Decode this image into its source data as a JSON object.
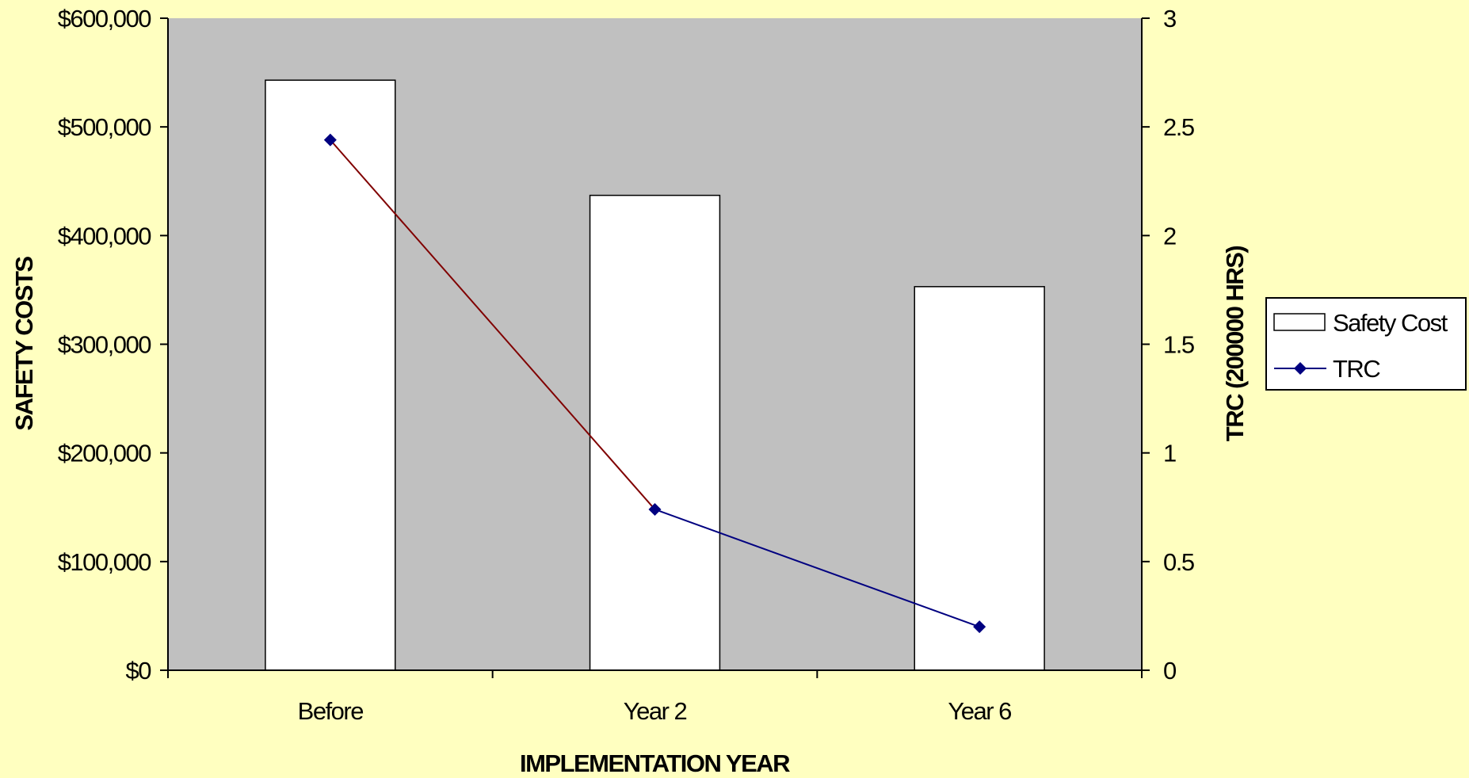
{
  "chart_data": {
    "type": "bar",
    "categories": [
      "Before",
      "Year 2",
      "Year 6"
    ],
    "series": [
      {
        "name": "Safety Cost",
        "type": "bar",
        "axis": "left",
        "values": [
          543000,
          437000,
          353000
        ],
        "color": "#FFFFFF"
      },
      {
        "name": "TRC",
        "type": "line",
        "axis": "right",
        "values": [
          2.44,
          0.74,
          0.2
        ],
        "color": "#000080",
        "first_segment_color": "#800000"
      }
    ],
    "xlabel": "IMPLEMENTATION YEAR",
    "ylabel": "SAFETY COSTS",
    "y2label": "TRC (200000 HRS)",
    "ylim": [
      0,
      600000
    ],
    "y2lim": [
      0,
      3
    ],
    "y_ticks": [
      "$0",
      "$100,000",
      "$200,000",
      "$300,000",
      "$400,000",
      "$500,000",
      "$600,000"
    ],
    "y2_ticks": [
      "0",
      "0.5",
      "1",
      "1.5",
      "2",
      "2.5",
      "3"
    ],
    "grid": false,
    "legend_position": "right",
    "colors": {
      "background": "#FFFFC0",
      "plot_area": "#C0C0C0",
      "bar_fill": "#FFFFFF",
      "line": "#000080",
      "line_first_segment": "#800000"
    }
  }
}
